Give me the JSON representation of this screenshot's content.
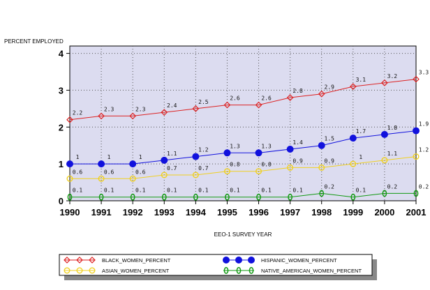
{
  "chart_data": {
    "type": "line",
    "ylabel": "PERCENT EMPLOYED",
    "xlabel": "EEO-1 SURVEY YEAR",
    "x": [
      1990,
      1991,
      1992,
      1993,
      1994,
      1995,
      1996,
      1997,
      1998,
      1999,
      2000,
      2001
    ],
    "x_tick_labels": [
      "1990",
      "1991",
      "1992",
      "1993",
      "1994",
      "1995",
      "1996",
      "1997",
      "1998",
      "1999",
      "2000",
      "2001"
    ],
    "ylim": [
      0,
      4.2
    ],
    "y_ticks": [
      0,
      1,
      2,
      3,
      4
    ],
    "grid": true,
    "plot_background": "#dcdcf0",
    "legend_position": "bottom",
    "series": [
      {
        "name": "BLACK_WOMEN_PERCENT",
        "color": "#dd2222",
        "marker": "diamond-open",
        "values": [
          2.2,
          2.3,
          2.3,
          2.4,
          2.5,
          2.6,
          2.6,
          2.8,
          2.9,
          3.1,
          3.2,
          3.3
        ],
        "labels": [
          "2.2",
          "2.3",
          "2.3",
          "2.4",
          "2.5",
          "2.6",
          "2.6",
          "2.8",
          "2.9",
          "3.1",
          "3.2",
          "3.3"
        ]
      },
      {
        "name": "HISPANIC_WOMEN_PERCENT",
        "color": "#1111dd",
        "marker": "circle-filled",
        "values": [
          1.0,
          1.0,
          1.0,
          1.1,
          1.2,
          1.3,
          1.3,
          1.4,
          1.5,
          1.7,
          1.8,
          1.9
        ],
        "labels": [
          "1",
          "1",
          "1",
          "1.1",
          "1.2",
          "1.3",
          "1.3",
          "1.4",
          "1.5",
          "1.7",
          "1.8",
          "1.9"
        ]
      },
      {
        "name": "ASIAN_WOMEN_PERCENT",
        "color": "#f0d020",
        "marker": "circle-open",
        "values": [
          0.6,
          0.6,
          0.6,
          0.7,
          0.7,
          0.8,
          0.8,
          0.9,
          0.9,
          1.0,
          1.1,
          1.2
        ],
        "labels": [
          "0.6",
          "0.6",
          "0.6",
          "0.7",
          "0.7",
          "0.8",
          "0.8",
          "0.9",
          "0.9",
          "1",
          "1.1",
          "1.2"
        ]
      },
      {
        "name": "NATIVE_AMERICAN_WOMEN_PERCENT",
        "color": "#119911",
        "marker": "zero-glyph",
        "values": [
          0.1,
          0.1,
          0.1,
          0.1,
          0.1,
          0.1,
          0.1,
          0.1,
          0.2,
          0.1,
          0.2,
          0.2
        ],
        "labels": [
          "0.1",
          "0.1",
          "0.1",
          "0.1",
          "0.1",
          "0.1",
          "0.1",
          "0.1",
          "0.2",
          "0.1",
          "0.2",
          "0.2"
        ]
      }
    ],
    "legend_order": [
      0,
      1,
      2,
      3
    ]
  }
}
